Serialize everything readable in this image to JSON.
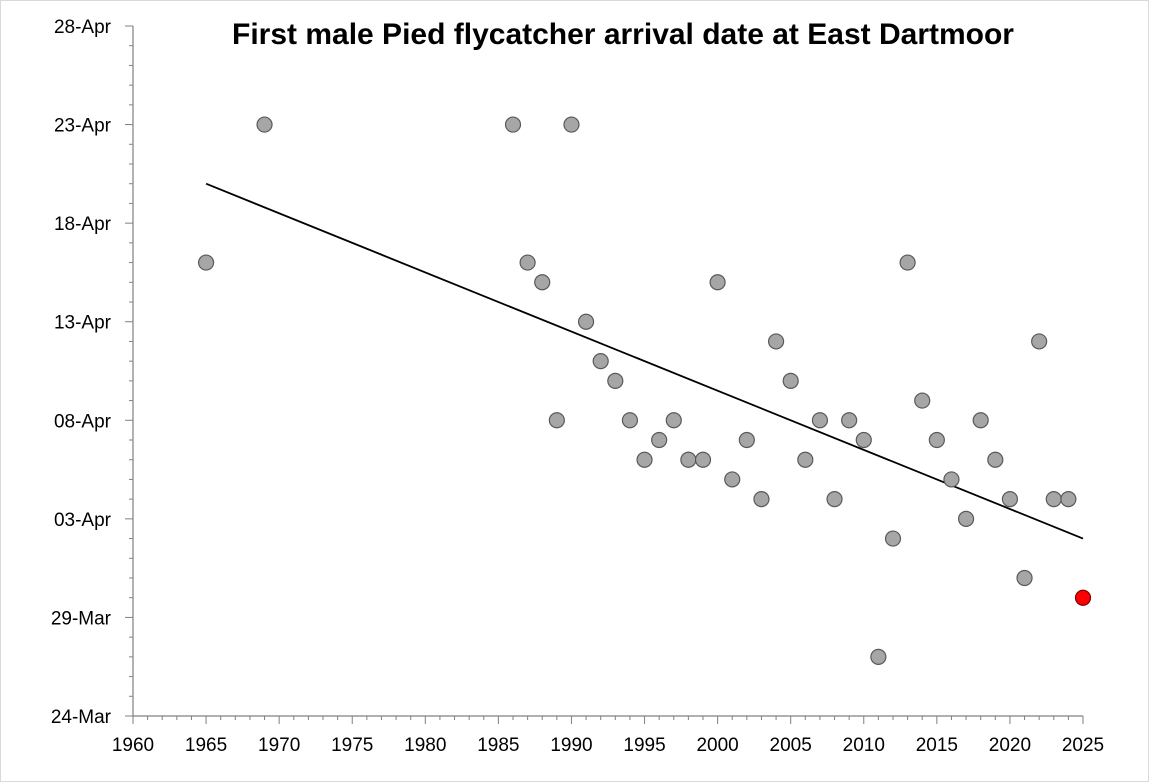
{
  "chart_data": {
    "type": "scatter",
    "title": "First male Pied flycatcher arrival date at East Dartmoor",
    "xlabel": "",
    "ylabel": "",
    "xlim": [
      1960,
      2025
    ],
    "ylim": [
      "24-Mar",
      "28-Apr"
    ],
    "x_ticks": [
      "1960",
      "1965",
      "1970",
      "1975",
      "1980",
      "1985",
      "1990",
      "1995",
      "2000",
      "2005",
      "2010",
      "2015",
      "2020",
      "2025"
    ],
    "y_ticks": [
      "24-Mar",
      "29-Mar",
      "03-Apr",
      "08-Apr",
      "13-Apr",
      "18-Apr",
      "23-Apr",
      "28-Apr"
    ],
    "grid": false,
    "legend": "none",
    "point_color": "#a6a6a6",
    "point_outline": "#595959",
    "highlight_color": "#ff0000",
    "trendline": {
      "type": "linear",
      "color": "#000000",
      "from": [
        1965,
        "20-Apr"
      ],
      "to": [
        2025,
        "02-Apr"
      ]
    },
    "points": [
      {
        "x": 1965,
        "y": "16-Apr"
      },
      {
        "x": 1969,
        "y": "23-Apr"
      },
      {
        "x": 1986,
        "y": "23-Apr"
      },
      {
        "x": 1987,
        "y": "16-Apr"
      },
      {
        "x": 1988,
        "y": "15-Apr"
      },
      {
        "x": 1989,
        "y": "08-Apr"
      },
      {
        "x": 1990,
        "y": "23-Apr"
      },
      {
        "x": 1991,
        "y": "13-Apr"
      },
      {
        "x": 1992,
        "y": "11-Apr"
      },
      {
        "x": 1993,
        "y": "10-Apr"
      },
      {
        "x": 1994,
        "y": "08-Apr"
      },
      {
        "x": 1995,
        "y": "06-Apr"
      },
      {
        "x": 1996,
        "y": "07-Apr"
      },
      {
        "x": 1997,
        "y": "08-Apr"
      },
      {
        "x": 1998,
        "y": "06-Apr"
      },
      {
        "x": 1999,
        "y": "06-Apr"
      },
      {
        "x": 2000,
        "y": "15-Apr"
      },
      {
        "x": 2001,
        "y": "05-Apr"
      },
      {
        "x": 2002,
        "y": "07-Apr"
      },
      {
        "x": 2003,
        "y": "04-Apr"
      },
      {
        "x": 2004,
        "y": "12-Apr"
      },
      {
        "x": 2005,
        "y": "10-Apr"
      },
      {
        "x": 2006,
        "y": "06-Apr"
      },
      {
        "x": 2007,
        "y": "08-Apr"
      },
      {
        "x": 2008,
        "y": "04-Apr"
      },
      {
        "x": 2009,
        "y": "08-Apr"
      },
      {
        "x": 2010,
        "y": "07-Apr"
      },
      {
        "x": 2011,
        "y": "27-Mar"
      },
      {
        "x": 2012,
        "y": "02-Apr"
      },
      {
        "x": 2013,
        "y": "16-Apr"
      },
      {
        "x": 2014,
        "y": "09-Apr"
      },
      {
        "x": 2015,
        "y": "07-Apr"
      },
      {
        "x": 2016,
        "y": "05-Apr"
      },
      {
        "x": 2017,
        "y": "03-Apr"
      },
      {
        "x": 2018,
        "y": "08-Apr"
      },
      {
        "x": 2019,
        "y": "06-Apr"
      },
      {
        "x": 2020,
        "y": "04-Apr"
      },
      {
        "x": 2021,
        "y": "31-Mar"
      },
      {
        "x": 2022,
        "y": "12-Apr"
      },
      {
        "x": 2023,
        "y": "04-Apr"
      },
      {
        "x": 2024,
        "y": "04-Apr"
      },
      {
        "x": 2025,
        "y": "30-Mar",
        "highlight": true
      }
    ]
  }
}
